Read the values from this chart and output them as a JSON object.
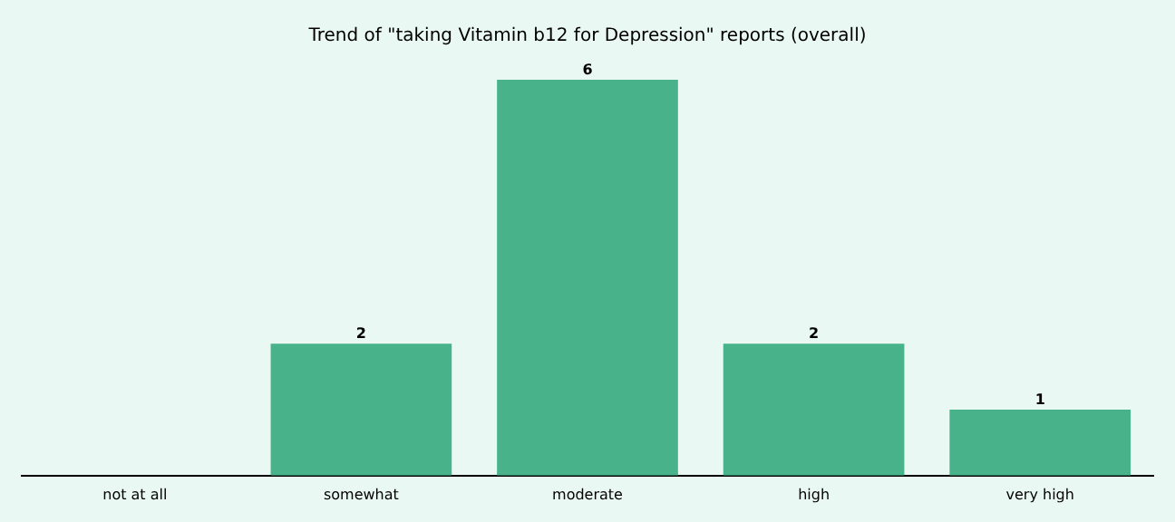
{
  "chart_data": {
    "type": "bar",
    "title": "Trend of \"taking Vitamin b12 for Depression\" reports (overall)",
    "categories": [
      "not at all",
      "somewhat",
      "moderate",
      "high",
      "very high"
    ],
    "values": [
      0,
      2,
      6,
      2,
      1
    ],
    "value_labels": [
      null,
      "2",
      "6",
      "2",
      "1"
    ],
    "color": "#48b38a",
    "grid": false,
    "legend": false
  }
}
